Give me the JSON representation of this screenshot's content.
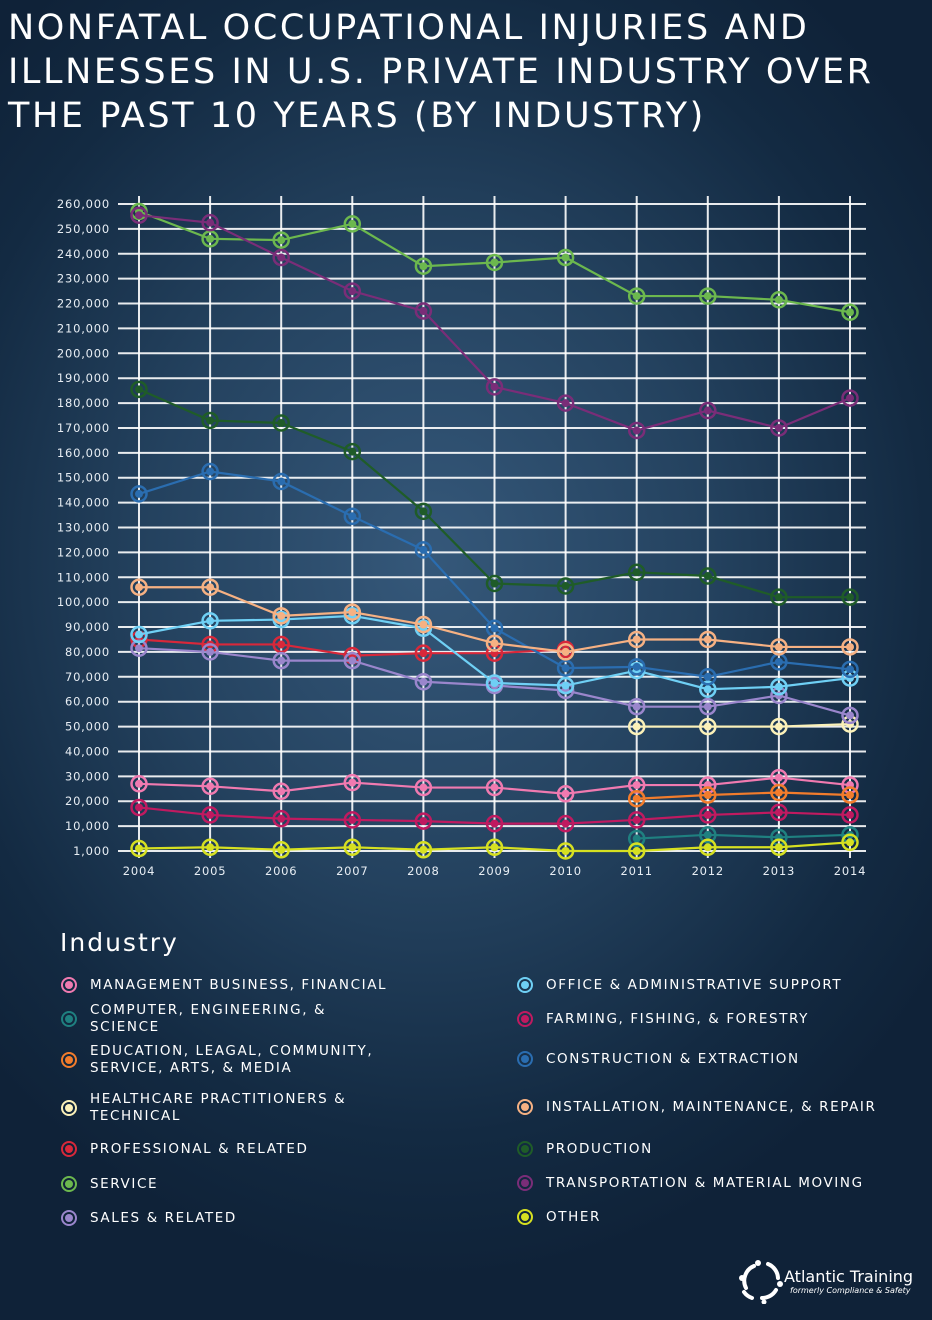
{
  "title": "Nonfatal Occupational Injuries and Illnesses in U.S. Private Industry Over the Past 10 Years (By Industry)",
  "legend_title": "Industry",
  "logo": {
    "name": "Atlantic Training",
    "tagline": "formerly Compliance & Safety"
  },
  "chart_data": {
    "type": "line",
    "title": "Nonfatal Occupational Injuries and Illnesses in U.S. Private Industry Over the Past 10 Years (By Industry)",
    "xlabel": "",
    "ylabel": "",
    "x": [
      2004,
      2005,
      2006,
      2007,
      2008,
      2009,
      2010,
      2011,
      2012,
      2013,
      2014
    ],
    "ylim": [
      0,
      260000
    ],
    "y_ticks": [
      "1,000",
      "10,000",
      "20,000",
      "30,000",
      "40,000",
      "50,000",
      "60,000",
      "70,000",
      "80,000",
      "90,000",
      "100,000",
      "110,000",
      "120,000",
      "130,000",
      "140,000",
      "150,000",
      "160,000",
      "170,000",
      "180,000",
      "190,000",
      "200,000",
      "210,000",
      "220,000",
      "230,000",
      "240,000",
      "250,000",
      "260,000"
    ],
    "grid": true,
    "legend_position": "bottom",
    "series": [
      {
        "name": "Management Business, Financial",
        "color": "#f07ab0",
        "values": [
          27000,
          26000,
          24000,
          27500,
          25500,
          25500,
          23000,
          26500,
          26500,
          29500,
          26500
        ]
      },
      {
        "name": "Computer, Engineering, & Science",
        "color": "#1f8080",
        "values": [
          null,
          null,
          null,
          null,
          null,
          null,
          null,
          5000,
          6500,
          5500,
          6500
        ]
      },
      {
        "name": "Education, Leagal, Community, Service, Arts, & Media",
        "color": "#f27c2c",
        "values": [
          null,
          null,
          null,
          null,
          null,
          null,
          null,
          21000,
          22500,
          23500,
          22500
        ]
      },
      {
        "name": "Healthcare Practitioners & Technical",
        "color": "#fbf1b8",
        "values": [
          null,
          null,
          null,
          null,
          null,
          null,
          null,
          50000,
          50000,
          50000,
          51000
        ]
      },
      {
        "name": "Professional & Related",
        "color": "#d8283a",
        "values": [
          85000,
          83000,
          83000,
          78500,
          79500,
          79500,
          81000,
          null,
          null,
          null,
          null
        ]
      },
      {
        "name": "Service",
        "color": "#6cb84e",
        "values": [
          257000,
          246000,
          245500,
          252000,
          235000,
          236500,
          238500,
          223000,
          223000,
          221500,
          216500
        ]
      },
      {
        "name": "Sales & Related",
        "color": "#9a86cc",
        "values": [
          81500,
          80000,
          76500,
          76500,
          68000,
          66500,
          64500,
          58000,
          58000,
          62500,
          54500
        ]
      },
      {
        "name": "Office & Administrative Support",
        "color": "#6fd0f5",
        "values": [
          87000,
          92500,
          93000,
          94500,
          89500,
          67500,
          66500,
          72500,
          65000,
          66000,
          69500
        ]
      },
      {
        "name": "Farming, Fishing, & Forestry",
        "color": "#c01a60",
        "values": [
          17500,
          14500,
          13000,
          12500,
          12000,
          11000,
          11000,
          12500,
          14500,
          15500,
          14500
        ]
      },
      {
        "name": "Construction & Extraction",
        "color": "#2a6db0",
        "values": [
          143500,
          152500,
          148500,
          134500,
          121000,
          89500,
          73500,
          74000,
          70000,
          76000,
          73000
        ]
      },
      {
        "name": "Installation, Maintenance, & Repair",
        "color": "#f6b183",
        "values": [
          106000,
          106000,
          94500,
          96000,
          91000,
          83500,
          80000,
          85000,
          85000,
          82000,
          82000
        ]
      },
      {
        "name": "Production",
        "color": "#1f5c28",
        "values": [
          185500,
          173000,
          172000,
          160500,
          136500,
          107500,
          106500,
          112000,
          110500,
          102000,
          102000
        ]
      },
      {
        "name": "Transportation & Material Moving",
        "color": "#7a2d78",
        "values": [
          255500,
          252500,
          238500,
          225000,
          217000,
          186500,
          180000,
          169000,
          177000,
          170000,
          182000
        ]
      },
      {
        "name": "Other",
        "color": "#d6e021",
        "values": [
          1000,
          1500,
          500,
          1500,
          500,
          1500,
          0,
          0,
          1500,
          1500,
          3500
        ]
      }
    ]
  }
}
